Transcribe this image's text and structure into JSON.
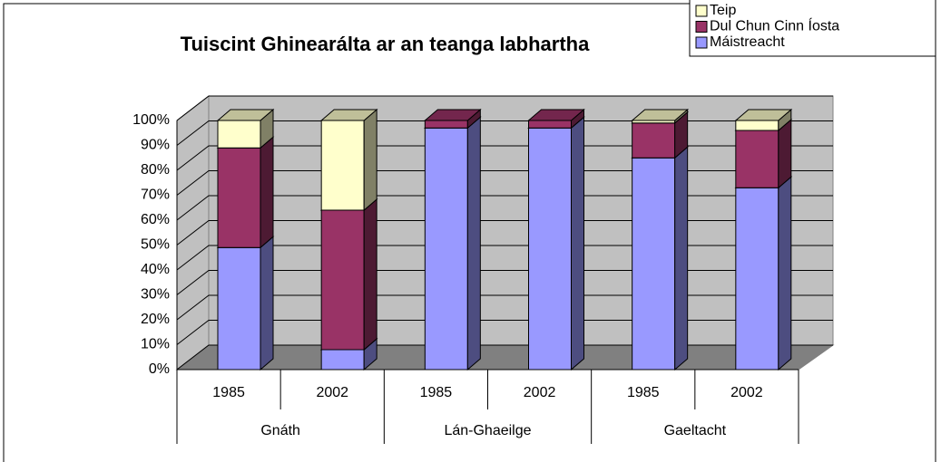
{
  "chart_data": {
    "type": "bar3d_stacked_percent",
    "title": "Tuiscint Ghinearálta ar an teanga labhartha",
    "categories": [
      "1985",
      "2002",
      "1985",
      "2002",
      "1985",
      "2002"
    ],
    "category_groups": [
      "Gnáth",
      "Lán-Ghaeilge",
      "Gaeltacht"
    ],
    "series": [
      {
        "name": "Máistreacht",
        "color": "#9999ff",
        "values": [
          49,
          8,
          97,
          97,
          85,
          73
        ]
      },
      {
        "name": "Dul Chun Cinn Íosta",
        "color": "#993366",
        "values": [
          40,
          56,
          3,
          3,
          14,
          23
        ]
      },
      {
        "name": "Teip",
        "color": "#ffffcc",
        "values": [
          11,
          36,
          0,
          0,
          1,
          4
        ]
      }
    ],
    "ylim": [
      0,
      100
    ],
    "yticks": [
      {
        "value": 0,
        "label": "0%"
      },
      {
        "value": 10,
        "label": "10%"
      },
      {
        "value": 20,
        "label": "20%"
      },
      {
        "value": 30,
        "label": "30%"
      },
      {
        "value": 40,
        "label": "40%"
      },
      {
        "value": 50,
        "label": "50%"
      },
      {
        "value": 60,
        "label": "60%"
      },
      {
        "value": 70,
        "label": "70%"
      },
      {
        "value": 80,
        "label": "80%"
      },
      {
        "value": 90,
        "label": "90%"
      },
      {
        "value": 100,
        "label": "100%"
      }
    ],
    "grid": true,
    "legend": "top-right"
  }
}
